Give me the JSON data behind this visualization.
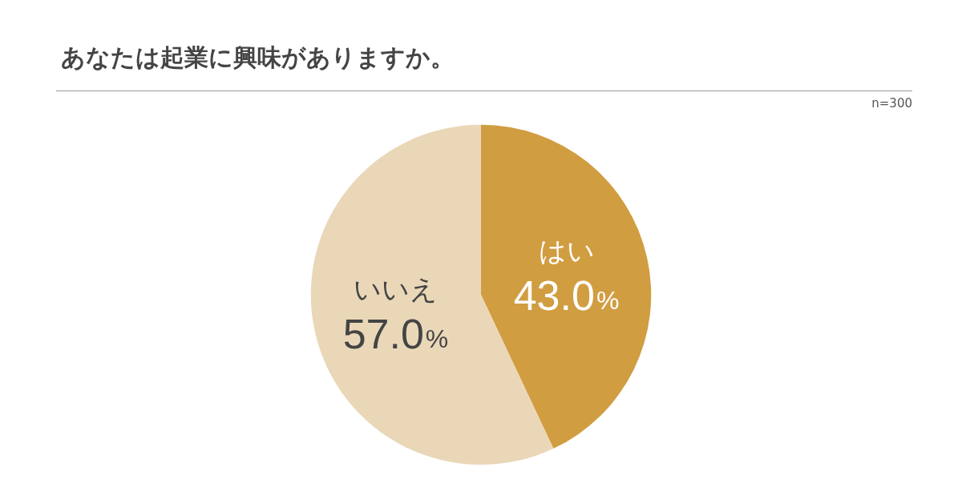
{
  "chart_data": {
    "type": "pie",
    "title": "あなたは起業に興味がありますか。",
    "annotations": [
      "n=300"
    ],
    "categories": [
      "はい",
      "いいえ"
    ],
    "values": [
      43.0,
      57.0
    ],
    "colors": [
      "#d19d41",
      "#ead7b8"
    ],
    "value_labels": [
      "43.0%",
      "57.0%"
    ],
    "legend": false
  }
}
